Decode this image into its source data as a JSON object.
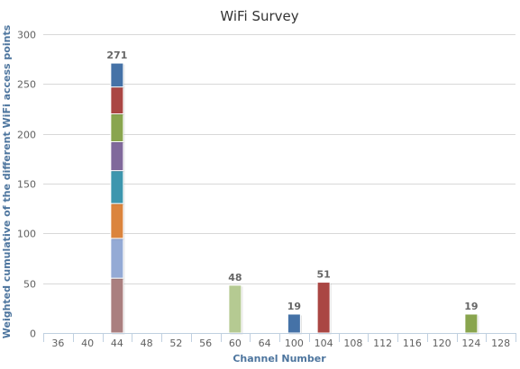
{
  "chart_data": {
    "type": "bar",
    "stacked": true,
    "title": "WiFi Survey",
    "xlabel": "Channel Number",
    "ylabel": "Weighted cumulative of the different WiFi access points",
    "ylim": [
      0,
      300
    ],
    "yticks": [
      0,
      50,
      100,
      150,
      200,
      250,
      300
    ],
    "grid": true,
    "categories": [
      "36",
      "40",
      "44",
      "48",
      "52",
      "56",
      "60",
      "64",
      "100",
      "104",
      "108",
      "112",
      "116",
      "120",
      "124",
      "128"
    ],
    "series": [
      {
        "color": "#aa7f7f",
        "values": [
          0,
          0,
          55,
          0,
          0,
          0,
          0,
          0,
          0,
          0,
          0,
          0,
          0,
          0,
          0,
          0
        ]
      },
      {
        "color": "#94aad5",
        "values": [
          0,
          0,
          40,
          0,
          0,
          0,
          0,
          0,
          0,
          0,
          0,
          0,
          0,
          0,
          0,
          0
        ]
      },
      {
        "color": "#db843d",
        "values": [
          0,
          0,
          35,
          0,
          0,
          0,
          0,
          0,
          0,
          0,
          0,
          0,
          0,
          0,
          0,
          0
        ]
      },
      {
        "color": "#3d96ae",
        "values": [
          0,
          0,
          33,
          0,
          0,
          0,
          0,
          0,
          0,
          0,
          0,
          0,
          0,
          0,
          0,
          0
        ]
      },
      {
        "color": "#80699b",
        "values": [
          0,
          0,
          29,
          0,
          0,
          0,
          0,
          0,
          0,
          0,
          0,
          0,
          0,
          0,
          0,
          0
        ]
      },
      {
        "color": "#89a54e",
        "values": [
          0,
          0,
          28,
          0,
          0,
          0,
          0,
          0,
          0,
          0,
          0,
          0,
          0,
          0,
          19,
          0
        ]
      },
      {
        "color": "#aa4643",
        "values": [
          0,
          0,
          27,
          0,
          0,
          0,
          0,
          0,
          0,
          51,
          0,
          0,
          0,
          0,
          0,
          0
        ]
      },
      {
        "color": "#4572a7",
        "values": [
          0,
          0,
          24,
          0,
          0,
          0,
          0,
          0,
          19,
          0,
          0,
          0,
          0,
          0,
          0,
          0
        ]
      },
      {
        "color": "#b5ca92",
        "values": [
          0,
          0,
          0,
          0,
          0,
          0,
          48,
          0,
          0,
          0,
          0,
          0,
          0,
          0,
          0,
          0
        ]
      }
    ],
    "totals": [
      null,
      null,
      271,
      null,
      null,
      null,
      48,
      null,
      19,
      51,
      null,
      null,
      null,
      null,
      19,
      null
    ]
  }
}
